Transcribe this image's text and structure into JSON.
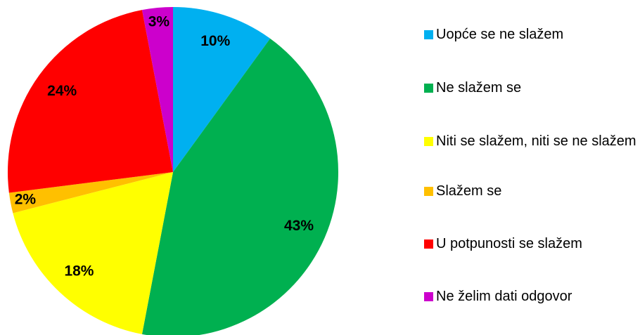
{
  "chart_data": {
    "type": "pie",
    "categories": [
      "Uopće se ne slažem",
      "Ne slažem se",
      "Niti se slažem, niti se ne slažem",
      "Slažem se",
      "U potpunosti se slažem",
      "Ne želim dati odgovor"
    ],
    "values": [
      10,
      43,
      18,
      2,
      24,
      3
    ],
    "value_labels": [
      "10%",
      "43%",
      "18%",
      "2%",
      "24%",
      "3%"
    ],
    "colors": [
      "#00b0f0",
      "#00b050",
      "#ffff00",
      "#ffc000",
      "#ff0000",
      "#cc00cc"
    ],
    "legend": "right"
  }
}
